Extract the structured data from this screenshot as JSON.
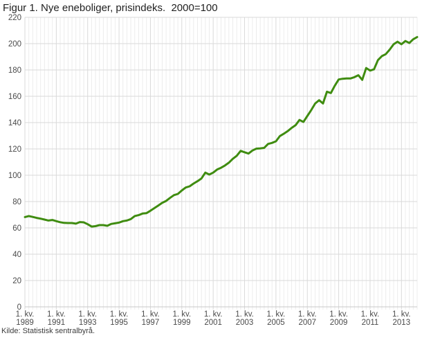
{
  "title": "Figur 1. Nye eneboliger, prisindeks.  2000=100",
  "source": "Kilde: Statistisk sentralbyrå.",
  "colors": {
    "line": "#3f8c10",
    "grid_minor": "#ececec",
    "grid_major": "#d9d9d9",
    "axis_line": "#c8c8c8",
    "tick_text": "#4b4b4b",
    "title_text": "#1f1f1f",
    "source_text": "#3c3c3c",
    "background": "#ffffff"
  },
  "chart_data": {
    "type": "line",
    "title": "Figur 1. Nye eneboliger, prisindeks. 2000=100",
    "xlabel": "",
    "ylabel": "",
    "ylim": [
      0,
      220
    ],
    "y_ticks": [
      0,
      20,
      40,
      60,
      80,
      100,
      120,
      140,
      160,
      180,
      200,
      220
    ],
    "grid": true,
    "legend": "none",
    "x_axis": {
      "unit": "quarter",
      "start_year": 1989,
      "start_quarter": 1,
      "end_year": 2014,
      "end_quarter": 1,
      "tick_label_line1": "1. kv.",
      "tick_years": [
        1989,
        1991,
        1993,
        1995,
        1997,
        1999,
        2001,
        2003,
        2005,
        2007,
        2009,
        2011,
        2013
      ],
      "minor_gridline_every_quarters": 1,
      "major_gridline_every_quarters": 8
    },
    "series": [
      {
        "name": "Nye eneboliger, prisindeks (2000=100)",
        "color": "#3f8c10",
        "values": [
          68.2,
          69.0,
          68.3,
          67.6,
          67.0,
          66.3,
          65.6,
          66.0,
          65.1,
          64.3,
          63.8,
          63.7,
          63.7,
          63.2,
          64.4,
          64.2,
          62.8,
          61.0,
          61.3,
          62.1,
          62.1,
          61.6,
          63.0,
          63.5,
          64.0,
          65.1,
          65.6,
          66.7,
          69.0,
          69.7,
          70.9,
          71.2,
          73.0,
          75.0,
          77.0,
          79.0,
          80.5,
          82.8,
          84.9,
          85.8,
          88.4,
          90.7,
          91.6,
          93.7,
          95.5,
          97.5,
          102.0,
          100.5,
          102.0,
          104.3,
          105.7,
          107.4,
          109.5,
          112.5,
          114.8,
          118.5,
          117.5,
          116.5,
          118.8,
          120.2,
          120.4,
          120.8,
          123.8,
          124.6,
          125.8,
          129.8,
          131.5,
          133.5,
          136.0,
          138.0,
          142.0,
          140.5,
          145.0,
          149.5,
          154.5,
          157.0,
          154.5,
          163.5,
          162.5,
          168.0,
          172.8,
          173.3,
          173.5,
          173.5,
          174.5,
          176.0,
          172.5,
          181.5,
          179.5,
          180.5,
          187.5,
          190.5,
          192.0,
          195.5,
          199.5,
          201.5,
          199.5,
          202.0,
          200.5,
          203.3,
          205.0
        ]
      }
    ]
  }
}
